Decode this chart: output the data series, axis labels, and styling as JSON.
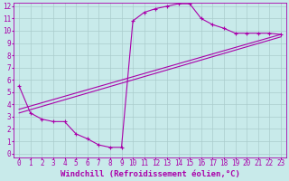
{
  "xlabel": "Windchill (Refroidissement éolien,°C)",
  "bg_color": "#c8eaea",
  "line_color": "#aa00aa",
  "grid_color": "#aacccc",
  "xlim": [
    -0.5,
    23.5
  ],
  "ylim": [
    -0.3,
    12.3
  ],
  "xticks": [
    0,
    1,
    2,
    3,
    4,
    5,
    6,
    7,
    8,
    9,
    10,
    11,
    12,
    13,
    14,
    15,
    16,
    17,
    18,
    19,
    20,
    21,
    22,
    23
  ],
  "yticks": [
    0,
    1,
    2,
    3,
    4,
    5,
    6,
    7,
    8,
    9,
    10,
    11,
    12
  ],
  "curve1_x": [
    0,
    1,
    2,
    3,
    4,
    5,
    6,
    7,
    8,
    9,
    10,
    11,
    12,
    13,
    14,
    15,
    16,
    17,
    18,
    19,
    20,
    21,
    22,
    23
  ],
  "curve1_y": [
    5.5,
    3.3,
    2.8,
    2.6,
    2.6,
    1.6,
    1.2,
    0.7,
    0.5,
    0.5,
    10.8,
    11.5,
    11.8,
    12.0,
    12.2,
    12.2,
    11.0,
    10.5,
    10.2,
    9.8,
    9.8,
    9.8,
    9.8,
    9.7
  ],
  "curve2_x": [
    0,
    23
  ],
  "curve2_y": [
    3.3,
    9.5
  ],
  "curve3_x": [
    0,
    23
  ],
  "curve3_y": [
    3.6,
    9.7
  ],
  "tick_fontsize": 5.5,
  "xlabel_fontsize": 6.5
}
